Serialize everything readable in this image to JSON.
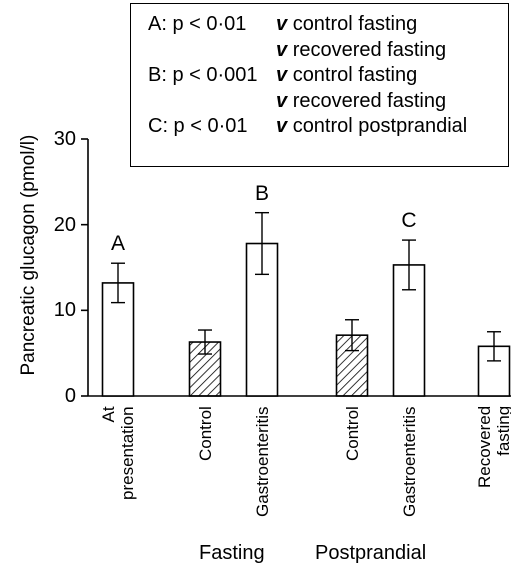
{
  "legend": [
    {
      "key": "A: p < 0·01",
      "lines": [
        "control fasting",
        "recovered fasting"
      ]
    },
    {
      "key": "B: p < 0·001",
      "lines": [
        "control fasting",
        "recovered fasting"
      ]
    },
    {
      "key": "C: p < 0·01",
      "lines": [
        "control postprandial"
      ]
    }
  ],
  "legend_v": "v",
  "group_labels": {
    "fasting": "Fasting",
    "postprandial": "Postprandial"
  },
  "chart_data": {
    "type": "bar",
    "ylabel": "Pancreatic glucagon (pmol/l)",
    "ylim": [
      0,
      30
    ],
    "yticks": [
      0,
      10,
      20,
      30
    ],
    "categories": [
      "At presentation",
      "Control",
      "Gastroenteritis",
      "Control",
      "Gastroenteritis",
      "Recovered fasting"
    ],
    "category_lines": [
      [
        "At",
        "presentation"
      ],
      [
        "Control"
      ],
      [
        "Gastroenteritis"
      ],
      [
        "Control"
      ],
      [
        "Gastroenteritis"
      ],
      [
        "Recovered",
        "fasting"
      ]
    ],
    "values": [
      13.2,
      6.3,
      17.8,
      7.1,
      15.3,
      5.8
    ],
    "errors": [
      2.3,
      1.4,
      3.6,
      1.8,
      2.9,
      1.7
    ],
    "patterns": [
      "open",
      "hatched",
      "open",
      "hatched",
      "open",
      "open"
    ],
    "annotations": [
      "A",
      "",
      "B",
      "",
      "C",
      ""
    ],
    "groups": [
      {
        "name": "Fasting",
        "members": [
          1,
          2
        ]
      },
      {
        "name": "Postprandial",
        "members": [
          3,
          4
        ]
      }
    ]
  }
}
